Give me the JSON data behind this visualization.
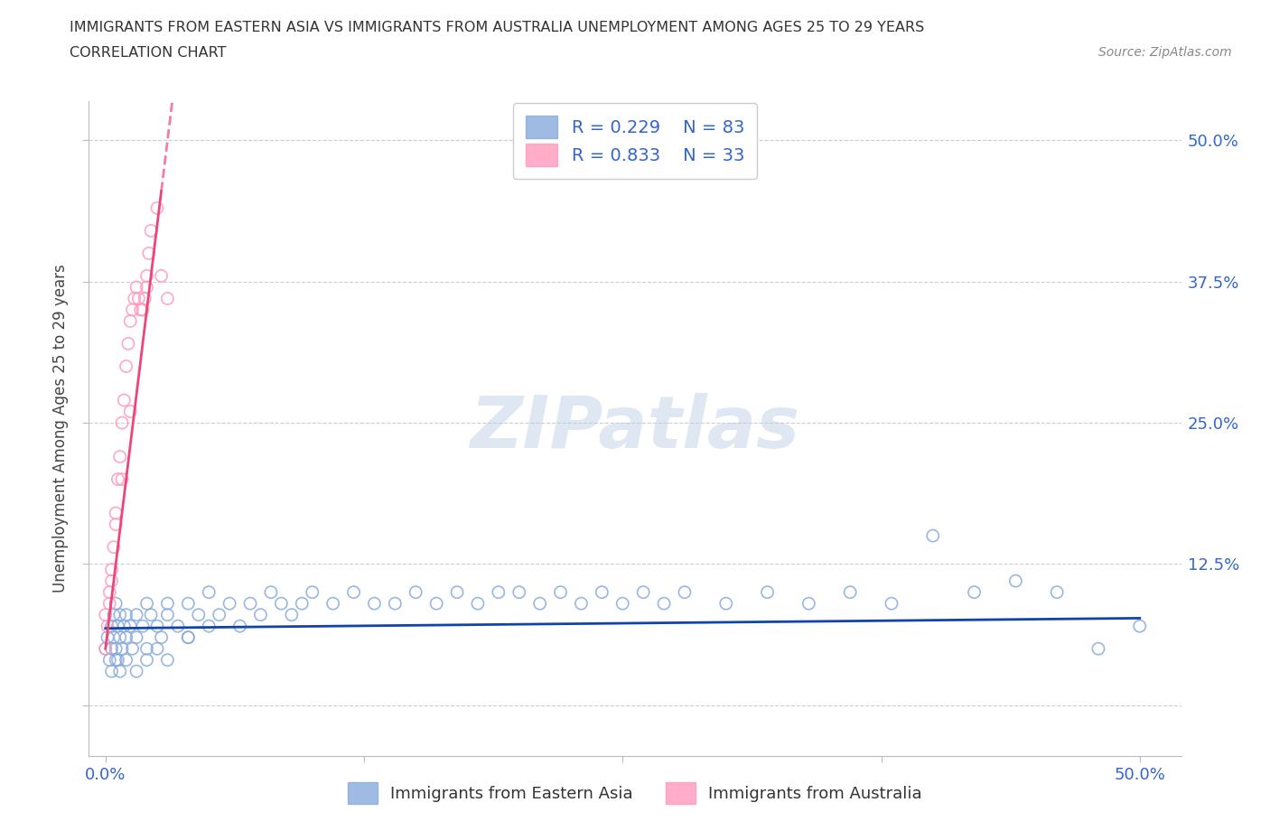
{
  "title_line1": "IMMIGRANTS FROM EASTERN ASIA VS IMMIGRANTS FROM AUSTRALIA UNEMPLOYMENT AMONG AGES 25 TO 29 YEARS",
  "title_line2": "CORRELATION CHART",
  "source_text": "Source: ZipAtlas.com",
  "ylabel": "Unemployment Among Ages 25 to 29 years",
  "watermark": "ZIPatlas",
  "xlim_data": [
    -0.008,
    0.52
  ],
  "ylim_data": [
    -0.045,
    0.535
  ],
  "xticks": [
    0.0,
    0.125,
    0.25,
    0.375,
    0.5
  ],
  "xticklabels": [
    "0.0%",
    "",
    "",
    "",
    "50.0%"
  ],
  "yticks": [
    0.0,
    0.125,
    0.25,
    0.375,
    0.5
  ],
  "ytick_labels_right": [
    "",
    "12.5%",
    "25.0%",
    "37.5%",
    "50.0%"
  ],
  "grid_color": "#cccccc",
  "blue_scatter_color": "#88aadd",
  "pink_scatter_color": "#ff99bb",
  "blue_line_color": "#1144aa",
  "pink_line_color": "#ee4477",
  "axis_color": "#3366cc",
  "title_color": "#333333",
  "source_color": "#888888",
  "legend_r1": "R = 0.229",
  "legend_n1": "N = 83",
  "legend_r2": "R = 0.833",
  "legend_n2": "N = 33",
  "ea_x": [
    0.0,
    0.001,
    0.002,
    0.003,
    0.003,
    0.004,
    0.004,
    0.005,
    0.005,
    0.006,
    0.006,
    0.007,
    0.007,
    0.008,
    0.009,
    0.01,
    0.01,
    0.012,
    0.013,
    0.015,
    0.015,
    0.018,
    0.02,
    0.02,
    0.022,
    0.025,
    0.027,
    0.03,
    0.03,
    0.035,
    0.04,
    0.04,
    0.045,
    0.05,
    0.055,
    0.06,
    0.065,
    0.07,
    0.075,
    0.08,
    0.085,
    0.09,
    0.095,
    0.1,
    0.11,
    0.12,
    0.13,
    0.14,
    0.15,
    0.16,
    0.17,
    0.18,
    0.19,
    0.2,
    0.21,
    0.22,
    0.23,
    0.24,
    0.25,
    0.26,
    0.27,
    0.28,
    0.3,
    0.32,
    0.34,
    0.36,
    0.38,
    0.4,
    0.42,
    0.44,
    0.46,
    0.48,
    0.5,
    0.003,
    0.005,
    0.007,
    0.01,
    0.015,
    0.02,
    0.025,
    0.03,
    0.04,
    0.05
  ],
  "ea_y": [
    0.05,
    0.06,
    0.04,
    0.07,
    0.05,
    0.08,
    0.06,
    0.09,
    0.05,
    0.07,
    0.04,
    0.08,
    0.06,
    0.05,
    0.07,
    0.06,
    0.08,
    0.07,
    0.05,
    0.08,
    0.06,
    0.07,
    0.09,
    0.05,
    0.08,
    0.07,
    0.06,
    0.08,
    0.09,
    0.07,
    0.09,
    0.06,
    0.08,
    0.1,
    0.08,
    0.09,
    0.07,
    0.09,
    0.08,
    0.1,
    0.09,
    0.08,
    0.09,
    0.1,
    0.09,
    0.1,
    0.09,
    0.09,
    0.1,
    0.09,
    0.1,
    0.09,
    0.1,
    0.1,
    0.09,
    0.1,
    0.09,
    0.1,
    0.09,
    0.1,
    0.09,
    0.1,
    0.09,
    0.1,
    0.09,
    0.1,
    0.09,
    0.15,
    0.1,
    0.11,
    0.1,
    0.05,
    0.07,
    0.03,
    0.04,
    0.03,
    0.04,
    0.03,
    0.04,
    0.05,
    0.04,
    0.06,
    0.07
  ],
  "au_x": [
    0.0,
    0.001,
    0.002,
    0.003,
    0.004,
    0.005,
    0.006,
    0.007,
    0.008,
    0.009,
    0.01,
    0.011,
    0.012,
    0.013,
    0.014,
    0.015,
    0.016,
    0.017,
    0.018,
    0.019,
    0.02,
    0.021,
    0.022,
    0.025,
    0.027,
    0.03,
    0.0,
    0.002,
    0.003,
    0.005,
    0.008,
    0.012,
    0.02
  ],
  "au_y": [
    0.05,
    0.07,
    0.09,
    0.11,
    0.14,
    0.17,
    0.2,
    0.22,
    0.25,
    0.27,
    0.3,
    0.32,
    0.34,
    0.35,
    0.36,
    0.37,
    0.36,
    0.35,
    0.35,
    0.36,
    0.38,
    0.4,
    0.42,
    0.44,
    0.38,
    0.36,
    0.08,
    0.1,
    0.12,
    0.16,
    0.2,
    0.26,
    0.37
  ],
  "au_line_x_start": 0.0,
  "au_line_x_end": 0.027,
  "au_line_x_dash_end": 0.055,
  "ea_line_x_start": 0.0,
  "ea_line_x_end": 0.5
}
